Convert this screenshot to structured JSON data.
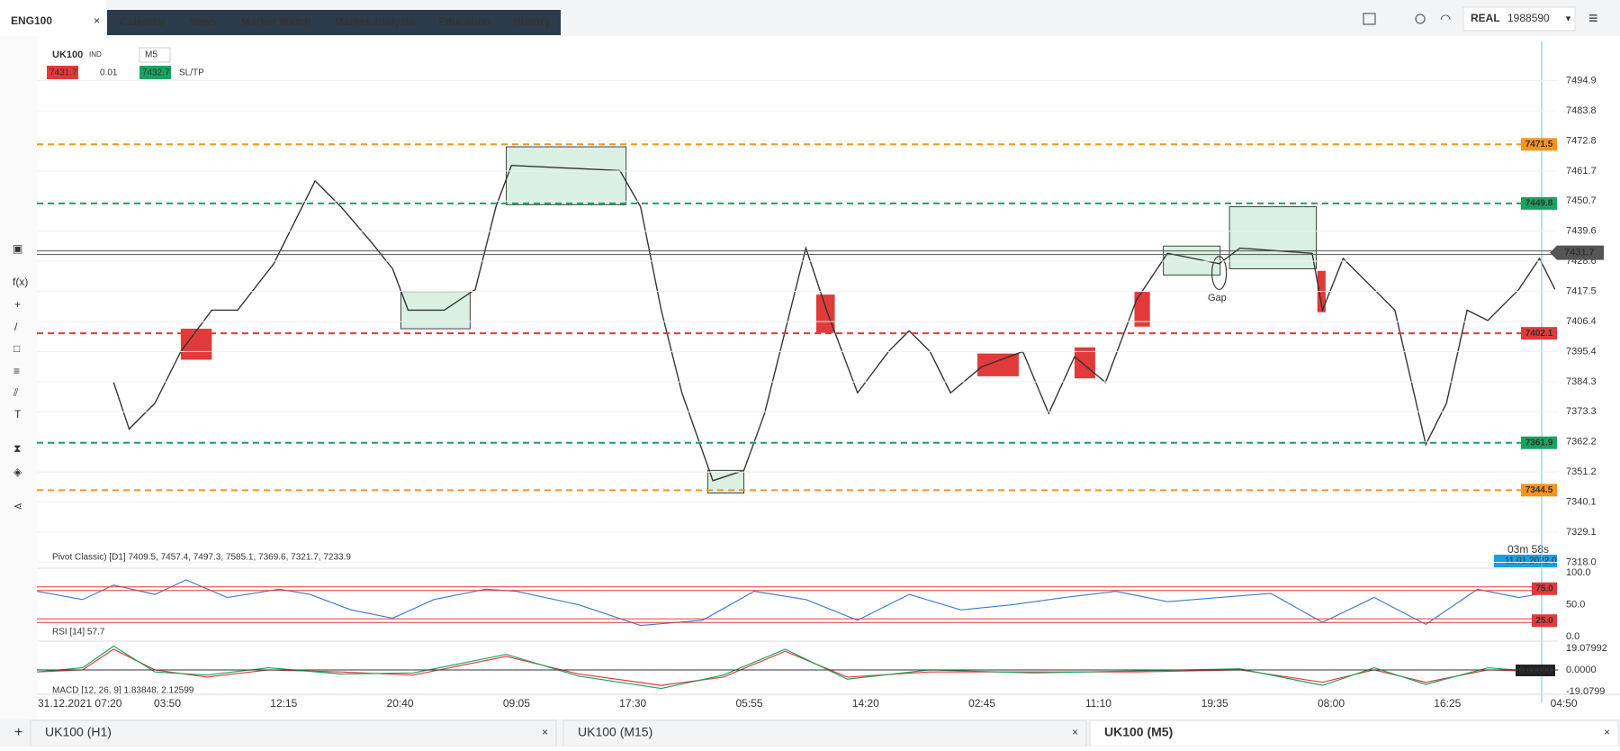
{
  "nav": {
    "symbol_tab": "ENG100",
    "items": [
      "Calendar",
      "News",
      "Market Watch",
      "Market analysis",
      "Education",
      "History"
    ]
  },
  "account": {
    "mode": "REAL",
    "number": "1988590"
  },
  "instrument": {
    "symbol": "UK100",
    "kind": "IND",
    "timeframe": "M5",
    "sell": "7431.7",
    "volume": "0.01",
    "buy": "7432.7",
    "sltp": "SL/TP"
  },
  "price_chart": {
    "type": "candlestick",
    "ylim": [
      7316.5,
      7509.3
    ],
    "yticks": [
      7494.9,
      7483.8,
      7472.8,
      7461.7,
      7450.7,
      7439.6,
      7428.6,
      7417.5,
      7406.4,
      7395.4,
      7384.3,
      7373.3,
      7362.2,
      7351.2,
      7340.1,
      7329.1,
      {
        "value": 7318,
        "label": "7318.0"
      }
    ],
    "grid": true,
    "levels": [
      {
        "value": 7471.5,
        "color": "#f7931e",
        "style": "dashed"
      },
      {
        "value": 7449.8,
        "color": "#1aa260",
        "style": "dashed"
      },
      {
        "value": 7431.7,
        "color": "#555555",
        "style": "current"
      },
      {
        "value": 7402.1,
        "color": "#e03a3a",
        "style": "dashed"
      },
      {
        "value": 7361.9,
        "color": "#1aa260",
        "style": "dashed"
      },
      {
        "value": 7344.5,
        "color": "#f7931e",
        "style": "dashed"
      }
    ],
    "x_labels": [
      "31.12.2021 07:20",
      "03:50",
      "12:15",
      "20:40",
      "09:05",
      "17:30",
      "05:55",
      "14:20",
      "02:45",
      "11:10",
      "19:35",
      "08:00",
      "16:25",
      "04:50"
    ],
    "annotation": "Gap",
    "countdown": "03m 58s",
    "cursor_date": "11.01.2022 0",
    "pivot_legend": "Pivot Classic) [D1] 7409.5, 7457.4, 7497.3, 7585.1, 7369.6, 7321.7, 7233.9"
  },
  "rsi": {
    "legend": "RSI [14] 57.7",
    "ylim": [
      0,
      100
    ],
    "yticks": [
      {
        "value": 100,
        "label": "100.0"
      },
      {
        "value": 50,
        "label": "50.0"
      },
      {
        "value": 0,
        "label": "0.0"
      }
    ],
    "levels": [
      {
        "value": 75,
        "label": "75.0"
      },
      {
        "value": 25,
        "label": "25.0"
      }
    ]
  },
  "macd": {
    "legend": "MACD [12, 26, 9] 1.83848, 2.12599",
    "ylim": [
      -19.0799,
      19.07992
    ],
    "yticks": [
      19.07992,
      {
        "value": 0,
        "label": "0.0000"
      },
      -19.0799
    ],
    "current": "0.00000"
  },
  "tabs": [
    "UK100 (H1)",
    "UK100 (M15)",
    "UK100 (M5)"
  ]
}
